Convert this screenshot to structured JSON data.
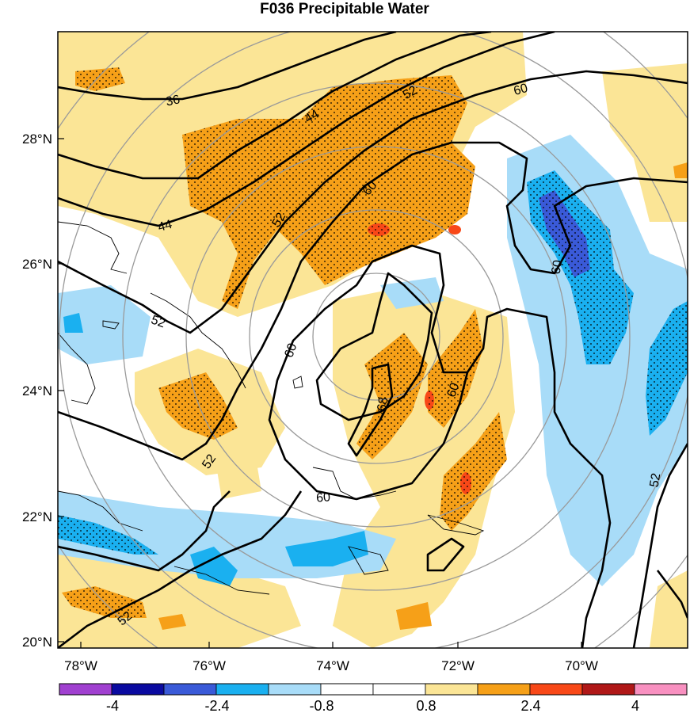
{
  "title": "F036 Precipitable Water",
  "lat_labels": [
    "28°N",
    "26°N",
    "24°N",
    "22°N",
    "20°N"
  ],
  "lon_labels": [
    "78°W",
    "76°W",
    "74°W",
    "72°W",
    "70°W"
  ],
  "colorbar": {
    "colors": [
      "#a040d0",
      "#0a0aa0",
      "#3a5ad8",
      "#1ab0f0",
      "#a8dcf8",
      "#ffffff",
      "#ffffff",
      "#fbe596",
      "#f6a018",
      "#f84818",
      "#b01818",
      "#f890c0"
    ],
    "labels": [
      "-4",
      "-2.4",
      "-0.8",
      "0.8",
      "2.4",
      "4"
    ]
  },
  "contour_labels": [
    "36",
    "44",
    "52",
    "60",
    "60",
    "44",
    "52",
    "52",
    "60",
    "60",
    "68",
    "60",
    "60",
    "52",
    "52",
    "52"
  ]
}
